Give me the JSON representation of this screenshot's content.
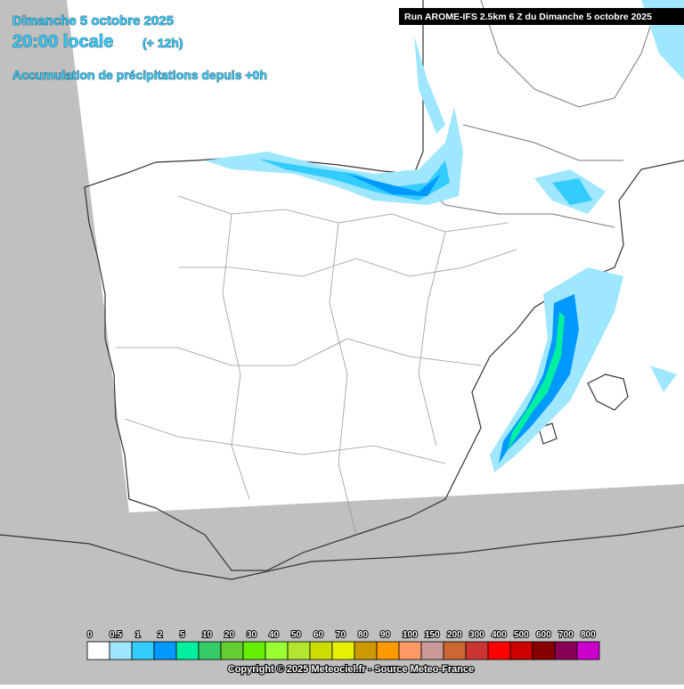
{
  "header": {
    "date": "Dimanche 5 octobre 2025",
    "time": "20:00 locale",
    "offset": "(+ 12h)",
    "parameter": "Accumulation de précipitations depuis +0h",
    "run": "Run AROME-IFS 2.5km 6 Z du Dimanche 5 octobre 2025"
  },
  "legend": {
    "items": [
      {
        "label": "0",
        "color": "#ffffff"
      },
      {
        "label": "0.5",
        "color": "#9fe6ff"
      },
      {
        "label": "1",
        "color": "#33ccff"
      },
      {
        "label": "2",
        "color": "#0099ff"
      },
      {
        "label": "5",
        "color": "#00f0a0"
      },
      {
        "label": "10",
        "color": "#33cc66"
      },
      {
        "label": "20",
        "color": "#66cc33"
      },
      {
        "label": "30",
        "color": "#66ee00"
      },
      {
        "label": "40",
        "color": "#99ff33"
      },
      {
        "label": "50",
        "color": "#b3e62e"
      },
      {
        "label": "60",
        "color": "#ccdd00"
      },
      {
        "label": "70",
        "color": "#e6f000"
      },
      {
        "label": "80",
        "color": "#cc9900"
      },
      {
        "label": "90",
        "color": "#ff9900"
      },
      {
        "label": "100",
        "color": "#ff9966"
      },
      {
        "label": "150",
        "color": "#cc9999"
      },
      {
        "label": "200",
        "color": "#cc6633"
      },
      {
        "label": "300",
        "color": "#cc3333"
      },
      {
        "label": "400",
        "color": "#ff0000"
      },
      {
        "label": "500",
        "color": "#cc0000"
      },
      {
        "label": "600",
        "color": "#880000"
      },
      {
        "label": "700",
        "color": "#880055"
      },
      {
        "label": "800",
        "color": "#cc00cc"
      }
    ]
  },
  "footer": {
    "copyright": "Copyright © 2025 Meteociel.fr - Source Meteo-France"
  }
}
